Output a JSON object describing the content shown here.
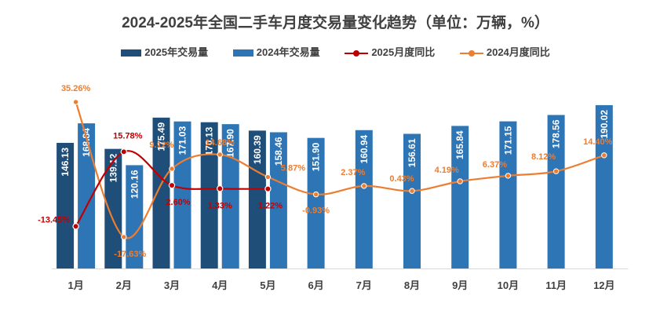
{
  "chart_data": {
    "type": "bar",
    "title": "2024-2025年全国二手车月度交易量变化趋势（单位：万辆，%）",
    "categories": [
      "1月",
      "2月",
      "3月",
      "4月",
      "5月",
      "6月",
      "7月",
      "8月",
      "9月",
      "10月",
      "11月",
      "12月"
    ],
    "series": [
      {
        "name": "2025年交易量",
        "kind": "bar",
        "color": "#1f4e79",
        "values": [
          146.13,
          139.12,
          175.49,
          170.13,
          160.39,
          null,
          null,
          null,
          null,
          null,
          null,
          null
        ]
      },
      {
        "name": "2024年交易量",
        "kind": "bar",
        "color": "#2e75b6",
        "values": [
          168.84,
          120.16,
          171.03,
          167.9,
          158.46,
          151.9,
          160.94,
          156.61,
          165.84,
          171.15,
          178.56,
          190.02
        ]
      },
      {
        "name": "2025月度同比",
        "kind": "line",
        "color": "#c00000",
        "values": [
          -13.45,
          15.78,
          2.6,
          1.33,
          1.22,
          null,
          null,
          null,
          null,
          null,
          null,
          null
        ],
        "labels": [
          "-13.45%",
          "15.78%",
          "2.60%",
          "1.33%",
          "1.22%"
        ]
      },
      {
        "name": "2024月度同比",
        "kind": "line",
        "color": "#ed7d31",
        "values": [
          35.26,
          -17.63,
          9.12,
          14.68,
          5.87,
          -0.93,
          2.37,
          0.43,
          4.19,
          6.37,
          8.12,
          14.4
        ],
        "labels": [
          "35.26%",
          "-17.63%",
          "9.12%",
          "14.68%",
          "5.87%",
          "-0.93%",
          "2.37%",
          "0.43%",
          "4.19%",
          "6.37%",
          "8.12%",
          "14.40%"
        ]
      }
    ],
    "xlabel": "",
    "ylabel": "",
    "grid": false,
    "legend": "top-center"
  }
}
